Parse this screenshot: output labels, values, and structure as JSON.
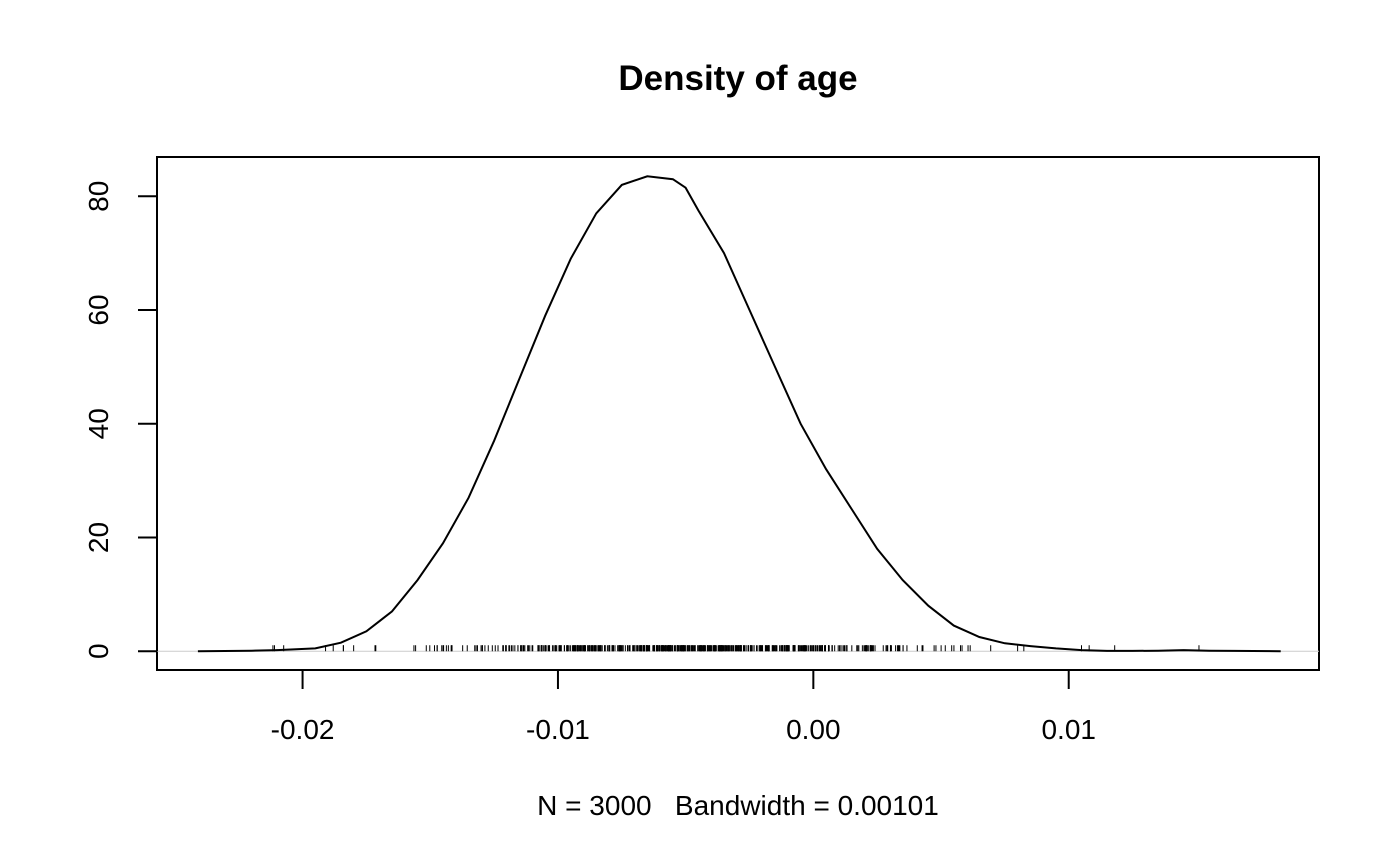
{
  "chart_data": {
    "type": "line",
    "title": "Density of age",
    "xlabel": "N = 3000   Bandwidth = 0.00101",
    "ylabel": "",
    "xlim": [
      -0.0257,
      0.0198
    ],
    "ylim": [
      -3.3,
      86.9
    ],
    "xticks": [
      -0.02,
      -0.01,
      0.0,
      0.01
    ],
    "xtick_labels": [
      "-0.02",
      "-0.01",
      "0.00",
      "0.01"
    ],
    "yticks": [
      0,
      20,
      40,
      60,
      80
    ],
    "ytick_labels": [
      "0",
      "20",
      "40",
      "60",
      "80"
    ],
    "grid": false,
    "zero_line": true,
    "rug": true,
    "series": [
      {
        "x": [
          -0.0241,
          -0.022,
          -0.021,
          -0.0195,
          -0.0185,
          -0.0175,
          -0.0165,
          -0.0155,
          -0.0145,
          -0.0135,
          -0.0125,
          -0.0115,
          -0.0105,
          -0.0095,
          -0.0085,
          -0.0075,
          -0.0065,
          -0.0055,
          -0.005,
          -0.0045,
          -0.0035,
          -0.0025,
          -0.0015,
          -0.0005,
          0.0005,
          0.0015,
          0.0025,
          0.0035,
          0.0045,
          0.0055,
          0.0065,
          0.0075,
          0.0085,
          0.0095,
          0.0105,
          0.0115,
          0.0125,
          0.0135,
          0.0145,
          0.0155,
          0.0165,
          0.0183
        ],
        "y": [
          0.0,
          0.1,
          0.2,
          0.5,
          1.5,
          3.5,
          7.0,
          12.5,
          19.0,
          27.0,
          37.0,
          48.0,
          59.0,
          69.0,
          77.0,
          82.0,
          83.5,
          83.0,
          81.5,
          77.5,
          70.0,
          60.0,
          50.0,
          40.0,
          32.0,
          25.0,
          18.0,
          12.5,
          8.0,
          4.5,
          2.5,
          1.4,
          0.9,
          0.5,
          0.2,
          0.05,
          0.05,
          0.1,
          0.2,
          0.1,
          0.05,
          0.0
        ]
      }
    ]
  }
}
